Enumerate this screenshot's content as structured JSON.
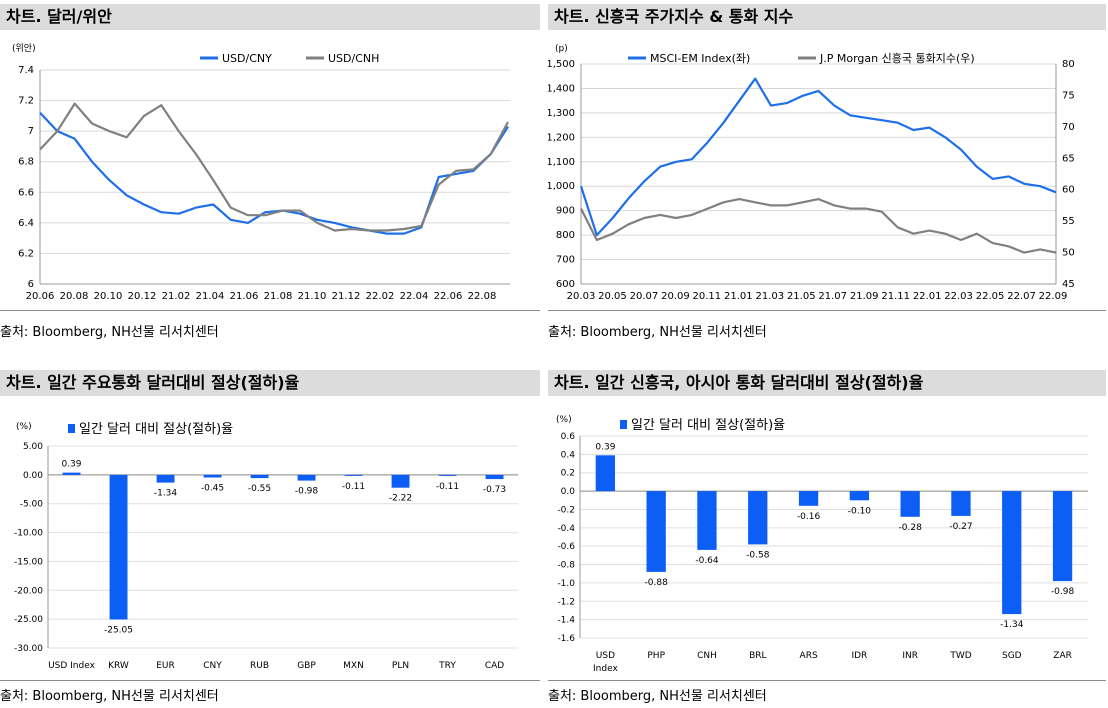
{
  "panels": [
    {
      "title": "차트. 달러/위안",
      "source": "출처: Bloomberg, NH선물 리서치센터"
    },
    {
      "title": "차트. 신흥국 주가지수 & 통화 지수",
      "source": "출처: Bloomberg, NH선물 리서치센터"
    },
    {
      "title": "차트. 일간 주요통화 달러대비 절상(절하)율",
      "source": "출처: Bloomberg, NH선물 리서치센터"
    },
    {
      "title": "차트. 일간 신흥국, 아시아 통화 달러대비 절상(절하)율",
      "source": "출처: Bloomberg, NH선물 리서치센터"
    }
  ],
  "colors": {
    "blue": "#1f6fe8",
    "gray": "#808080",
    "bar": "#0d5ef5",
    "header_bg": "#dcdcdc"
  },
  "chart_data": [
    {
      "type": "line",
      "unit_label": "(위안)",
      "ylim": [
        6,
        7.4
      ],
      "yticks": [
        6,
        6.2,
        6.4,
        6.6,
        6.8,
        7,
        7.2,
        7.4
      ],
      "ytick_labels": [
        "6",
        "6.2",
        "6.4",
        "6.6",
        "6.8",
        "7",
        "7.2",
        "7.4"
      ],
      "x_tick_labels": [
        "20.06",
        "20.08",
        "20.10",
        "20.12",
        "21.02",
        "21.04",
        "21.06",
        "21.08",
        "21.10",
        "21.12",
        "22.02",
        "22.04",
        "22.06",
        "22.08"
      ],
      "legend_position": "top",
      "series": [
        {
          "name": "USD/CNY",
          "color": "#1f6fe8",
          "x": [
            "20.06",
            "20.07",
            "20.08",
            "20.09",
            "20.10",
            "20.11",
            "20.12",
            "21.01",
            "21.02",
            "21.03",
            "21.04",
            "21.05",
            "21.06",
            "21.07",
            "21.08",
            "21.09",
            "21.10",
            "21.11",
            "21.12",
            "22.01",
            "22.02",
            "22.03",
            "22.04",
            "22.05",
            "22.06",
            "22.07",
            "22.08",
            "22.09"
          ],
          "values": [
            7.12,
            7.0,
            6.95,
            6.8,
            6.68,
            6.58,
            6.52,
            6.47,
            6.46,
            6.5,
            6.52,
            6.42,
            6.4,
            6.47,
            6.48,
            6.46,
            6.42,
            6.4,
            6.37,
            6.35,
            6.33,
            6.33,
            6.37,
            6.7,
            6.72,
            6.74,
            6.85,
            7.03
          ]
        },
        {
          "name": "USD/CNH",
          "color": "#808080",
          "x": [
            "20.06",
            "20.07",
            "20.08",
            "20.09",
            "20.10",
            "20.11",
            "20.12",
            "21.01",
            "21.02",
            "21.03",
            "21.04",
            "21.05",
            "21.06",
            "21.07",
            "21.08",
            "21.09",
            "21.10",
            "21.11",
            "21.12",
            "22.01",
            "22.02",
            "22.03",
            "22.04",
            "22.05",
            "22.06",
            "22.07",
            "22.08",
            "22.09"
          ],
          "values": [
            6.88,
            7.0,
            7.18,
            7.05,
            7.0,
            6.96,
            7.1,
            7.17,
            7.0,
            6.85,
            6.68,
            6.5,
            6.45,
            6.45,
            6.48,
            6.48,
            6.4,
            6.35,
            6.36,
            6.35,
            6.35,
            6.36,
            6.38,
            6.65,
            6.74,
            6.75,
            6.85,
            7.06
          ]
        }
      ]
    },
    {
      "type": "line",
      "unit_label": "(p)",
      "ylim": [
        600,
        1500
      ],
      "yticks": [
        600,
        700,
        800,
        900,
        1000,
        1100,
        1200,
        1300,
        1400,
        1500
      ],
      "ytick_labels": [
        "600",
        "700",
        "800",
        "900",
        "1,000",
        "1,100",
        "1,200",
        "1,300",
        "1,400",
        "1,500"
      ],
      "y2lim": [
        45,
        80
      ],
      "y2ticks": [
        45,
        50,
        55,
        60,
        65,
        70,
        75,
        80
      ],
      "y2tick_labels": [
        "45",
        "50",
        "55",
        "60",
        "65",
        "70",
        "75",
        "80"
      ],
      "x_tick_labels": [
        "20.03",
        "20.05",
        "20.07",
        "20.09",
        "20.11",
        "21.01",
        "21.03",
        "21.05",
        "21.07",
        "21.09",
        "21.11",
        "22.01",
        "22.03",
        "22.05",
        "22.07",
        "22.09"
      ],
      "legend_position": "top",
      "series": [
        {
          "name": "MSCI-EM Index(좌)",
          "axis": "left",
          "color": "#1f6fe8",
          "x": [
            "20.03",
            "20.04",
            "20.05",
            "20.06",
            "20.07",
            "20.08",
            "20.09",
            "20.10",
            "20.11",
            "20.12",
            "21.01",
            "21.02",
            "21.03",
            "21.04",
            "21.05",
            "21.06",
            "21.07",
            "21.08",
            "21.09",
            "21.10",
            "21.11",
            "21.12",
            "22.01",
            "22.02",
            "22.03",
            "22.04",
            "22.05",
            "22.06",
            "22.07",
            "22.08",
            "22.09"
          ],
          "values": [
            1000,
            800,
            870,
            950,
            1020,
            1080,
            1100,
            1110,
            1180,
            1260,
            1350,
            1440,
            1330,
            1340,
            1370,
            1390,
            1330,
            1290,
            1280,
            1270,
            1260,
            1230,
            1240,
            1200,
            1150,
            1080,
            1030,
            1040,
            1010,
            1000,
            975
          ]
        },
        {
          "name": "J.P Morgan 신흥국 통화지수(우)",
          "axis": "right",
          "color": "#808080",
          "x": [
            "20.03",
            "20.04",
            "20.05",
            "20.06",
            "20.07",
            "20.08",
            "20.09",
            "20.10",
            "20.11",
            "20.12",
            "21.01",
            "21.02",
            "21.03",
            "21.04",
            "21.05",
            "21.06",
            "21.07",
            "21.08",
            "21.09",
            "21.10",
            "21.11",
            "21.12",
            "22.01",
            "22.02",
            "22.03",
            "22.04",
            "22.05",
            "22.06",
            "22.07",
            "22.08",
            "22.09"
          ],
          "values": [
            57,
            52,
            53,
            54.5,
            55.5,
            56,
            55.5,
            56,
            57,
            58,
            58.5,
            58,
            57.5,
            57.5,
            58,
            58.5,
            57.5,
            57,
            57,
            56.5,
            54,
            53,
            53.5,
            53,
            52,
            53,
            51.5,
            51,
            50,
            50.5,
            50
          ]
        }
      ]
    },
    {
      "type": "bar",
      "unit_label": "(%)",
      "legend_position": "top-left",
      "ylim": [
        -30,
        5
      ],
      "yticks": [
        5,
        0,
        -5,
        -10,
        -15,
        -20,
        -25,
        -30
      ],
      "ytick_labels": [
        "5.00",
        "0.00",
        "-5.00",
        "-10.00",
        "-15.00",
        "-20.00",
        "-25.00",
        "-30.00"
      ],
      "categories": [
        "USD Index",
        "KRW",
        "EUR",
        "CNY",
        "RUB",
        "GBP",
        "MXN",
        "PLN",
        "TRY",
        "CAD"
      ],
      "value_labels": [
        "0.39",
        "-25.05",
        "-1.34",
        "-0.45",
        "-0.55",
        "-0.98",
        "-0.11",
        "-2.22",
        "-0.11",
        "-0.73"
      ],
      "series": [
        {
          "name": "일간 달러 대비 절상(절하)율",
          "color": "#0d5ef5",
          "values": [
            0.39,
            -25.05,
            -1.34,
            -0.45,
            -0.55,
            -0.98,
            -0.11,
            -2.22,
            -0.11,
            -0.73
          ]
        }
      ]
    },
    {
      "type": "bar",
      "unit_label": "(%)",
      "legend_position": "top-left",
      "ylim": [
        -1.6,
        0.6
      ],
      "yticks": [
        0.6,
        0.4,
        0.2,
        0,
        -0.2,
        -0.4,
        -0.6,
        -0.8,
        -1,
        -1.2,
        -1.4,
        -1.6
      ],
      "ytick_labels": [
        "0.6",
        "0.4",
        "0.2",
        "0.0",
        "-0.2",
        "-0.4",
        "-0.6",
        "-0.8",
        "-1.0",
        "-1.2",
        "-1.4",
        "-1.6"
      ],
      "categories": [
        "USD Index",
        "PHP",
        "CNH",
        "BRL",
        "ARS",
        "IDR",
        "INR",
        "TWD",
        "SGD",
        "ZAR"
      ],
      "value_labels": [
        "0.39",
        "-0.88",
        "-0.64",
        "-0.58",
        "-0.16",
        "-0.10",
        "-0.28",
        "-0.27",
        "-1.34",
        "-0.98"
      ],
      "series": [
        {
          "name": "일간 달러 대비 절상(절하)율",
          "color": "#0d5ef5",
          "values": [
            0.39,
            -0.88,
            -0.64,
            -0.58,
            -0.16,
            -0.1,
            -0.28,
            -0.27,
            -1.34,
            -0.98
          ]
        }
      ]
    }
  ]
}
